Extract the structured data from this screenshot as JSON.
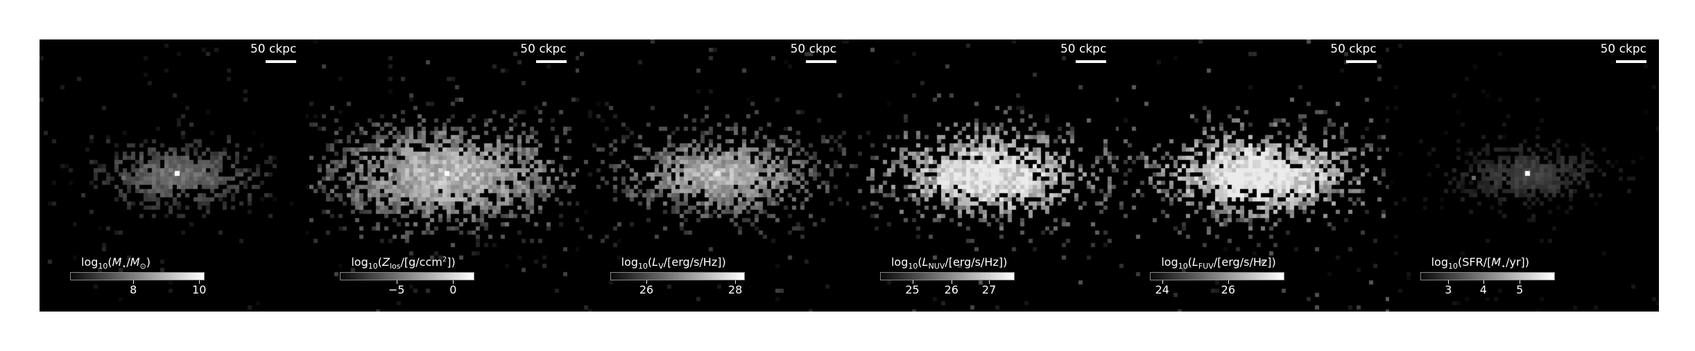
{
  "scalebar_label": "50 ckpc",
  "panels": [
    {
      "id": "stellar-mass",
      "ticks": [
        "8",
        "10"
      ],
      "tick_pos": [
        0.47,
        0.96
      ],
      "spread": 1.0,
      "intensity": 0.6,
      "peak": 1.0
    },
    {
      "id": "metallicity",
      "ticks": [
        "−5",
        "0"
      ],
      "tick_pos": [
        0.42,
        0.84
      ],
      "spread": 1.6,
      "intensity": 1.0,
      "peak": 1.0
    },
    {
      "id": "luminosity-v",
      "ticks": [
        "26",
        "28"
      ],
      "tick_pos": [
        0.27,
        0.93
      ],
      "spread": 1.3,
      "intensity": 0.95,
      "peak": 0.9
    },
    {
      "id": "luminosity-nuv",
      "ticks": [
        "25",
        "26",
        "27"
      ],
      "tick_pos": [
        0.24,
        0.53,
        0.81
      ],
      "spread": 1.4,
      "intensity": 1.3,
      "peak": 0.9
    },
    {
      "id": "luminosity-fuv",
      "ticks": [
        "24",
        "26"
      ],
      "tick_pos": [
        0.09,
        0.58
      ],
      "spread": 1.4,
      "intensity": 1.35,
      "peak": 0.9
    },
    {
      "id": "sfr",
      "ticks": [
        "3",
        "4",
        "5"
      ],
      "tick_pos": [
        0.21,
        0.47,
        0.74
      ],
      "spread": 0.9,
      "intensity": 0.35,
      "peak": 1.0
    }
  ]
}
